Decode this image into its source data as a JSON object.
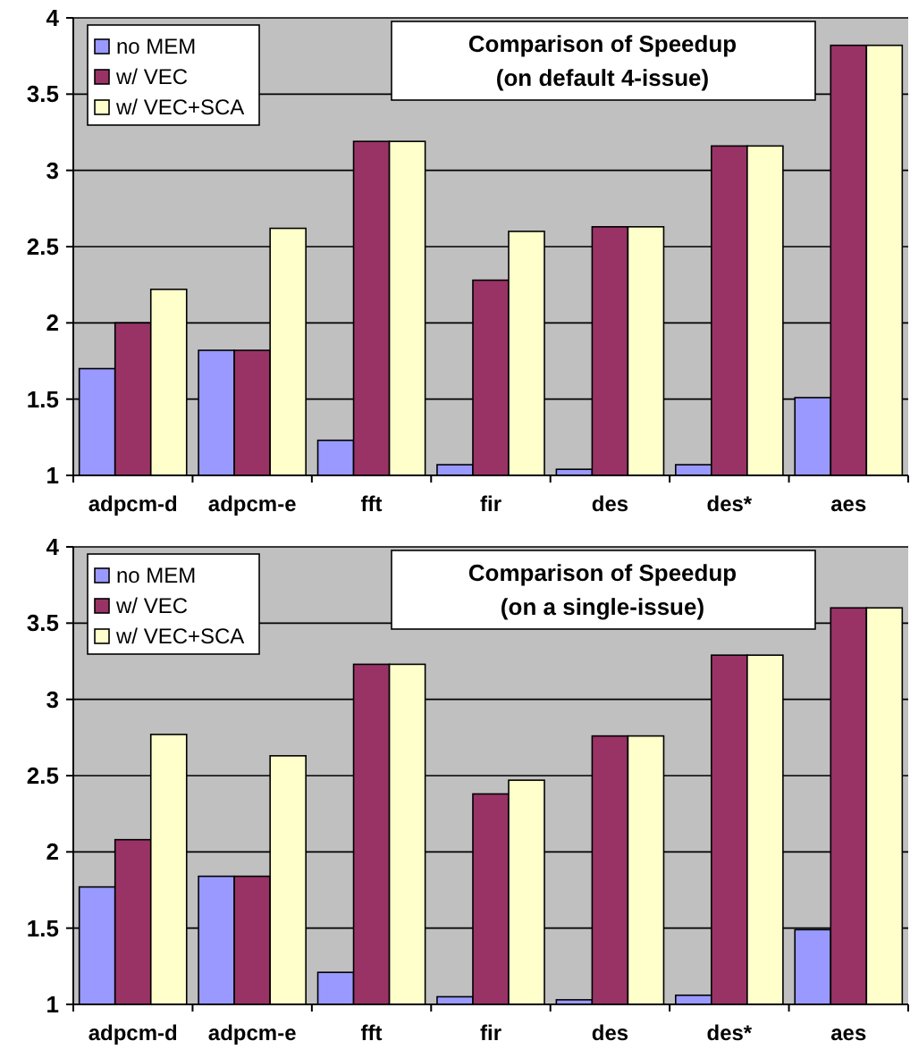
{
  "chart_data": [
    {
      "type": "bar",
      "title": "Comparison of Speedup",
      "subtitle": "(on default 4-issue)",
      "categories": [
        "adpcm-d",
        "adpcm-e",
        "fft",
        "fir",
        "des",
        "des*",
        "aes"
      ],
      "series": [
        {
          "name": "no MEM",
          "color": "#9999ff",
          "values": [
            1.7,
            1.82,
            1.23,
            1.07,
            1.04,
            1.07,
            1.51
          ]
        },
        {
          "name": "w/ VEC",
          "color": "#993366",
          "values": [
            2.0,
            1.82,
            3.19,
            2.28,
            2.63,
            3.16,
            3.82
          ]
        },
        {
          "name": "w/ VEC+SCA",
          "color": "#ffffcc",
          "values": [
            2.22,
            2.62,
            3.19,
            2.6,
            2.63,
            3.16,
            3.82
          ]
        }
      ],
      "ylim": [
        1,
        4
      ],
      "yticks": [
        1,
        1.5,
        2,
        2.5,
        3,
        3.5,
        4
      ],
      "grid": "y",
      "legend": "top left"
    },
    {
      "type": "bar",
      "title": "Comparison of Speedup",
      "subtitle": "(on a single-issue)",
      "categories": [
        "adpcm-d",
        "adpcm-e",
        "fft",
        "fir",
        "des",
        "des*",
        "aes"
      ],
      "series": [
        {
          "name": "no MEM",
          "color": "#9999ff",
          "values": [
            1.77,
            1.84,
            1.21,
            1.05,
            1.03,
            1.06,
            1.49
          ]
        },
        {
          "name": "w/ VEC",
          "color": "#993366",
          "values": [
            2.08,
            1.84,
            3.23,
            2.38,
            2.76,
            3.29,
            3.6
          ]
        },
        {
          "name": "w/ VEC+SCA",
          "color": "#ffffcc",
          "values": [
            2.77,
            2.63,
            3.23,
            2.47,
            2.76,
            3.29,
            3.6
          ]
        }
      ],
      "ylim": [
        1,
        4
      ],
      "yticks": [
        1,
        1.5,
        2,
        2.5,
        3,
        3.5,
        4
      ],
      "grid": "y",
      "legend": "top left"
    }
  ]
}
